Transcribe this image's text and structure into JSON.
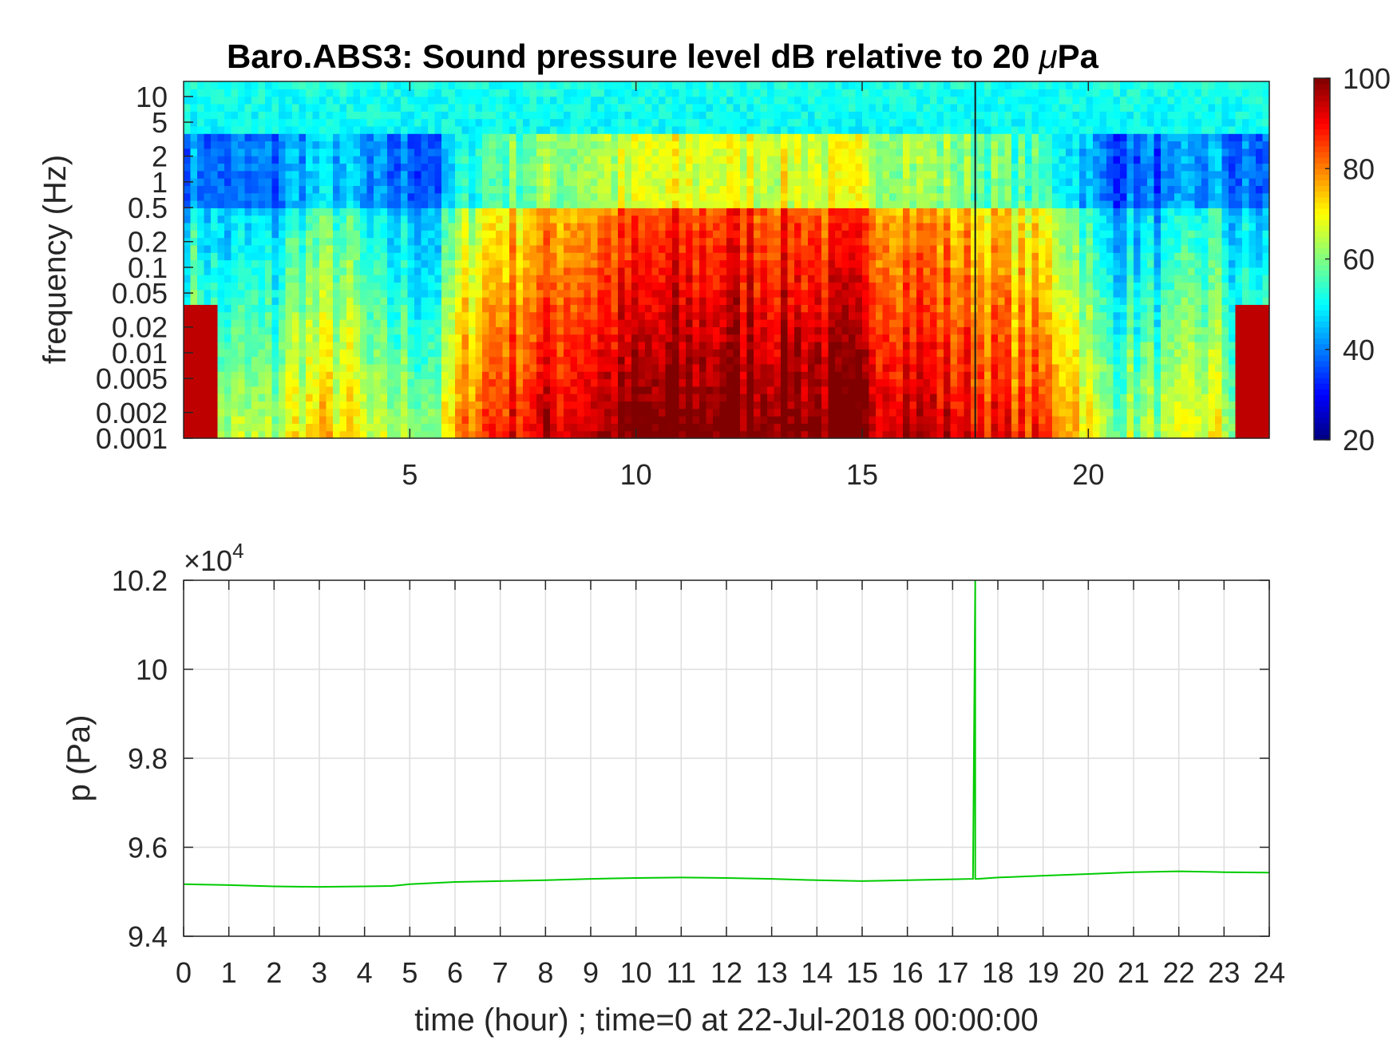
{
  "chart_data": [
    {
      "type": "heatmap",
      "title": "Baro.ABS3: Sound pressure level dB relative to 20 μPa",
      "title_prefix": "Baro.ABS3: Sound pressure level dB relative to 20 ",
      "title_mu": "μ",
      "title_suffix": "Pa",
      "ylabel": "frequency (Hz)",
      "xlabel": "",
      "xlim": [
        0,
        24
      ],
      "ylim": [
        0.001,
        15
      ],
      "yscale": "log",
      "x_ticks": [
        "5",
        "10",
        "15",
        "20"
      ],
      "x_tick_values": [
        5,
        10,
        15,
        20
      ],
      "y_ticks": [
        "0.001",
        "0.002",
        "0.005",
        "0.01",
        "0.02",
        "0.05",
        "0.1",
        "0.2",
        "0.5",
        "1",
        "2",
        "5",
        "10"
      ],
      "y_tick_values": [
        0.001,
        0.002,
        0.005,
        0.01,
        0.02,
        0.05,
        0.1,
        0.2,
        0.5,
        1,
        2,
        5,
        10
      ],
      "colorbar": {
        "colormap": "jet",
        "range": [
          20,
          100
        ],
        "ticks": [
          "20",
          "40",
          "60",
          "80",
          "100"
        ],
        "tick_values": [
          20,
          40,
          60,
          80,
          100
        ]
      },
      "event_time_hour": 17.5,
      "quiet_periods_hour": [
        5.0,
        21.0
      ],
      "grid": false
    },
    {
      "type": "line",
      "xlabel": "time (hour) ; time=0 at 22-Jul-2018 00:00:00",
      "ylabel": "p (Pa)",
      "exponent_label": "×10",
      "exponent_power": "4",
      "xlim": [
        0,
        24
      ],
      "ylim": [
        9.4,
        10.2
      ],
      "x_ticks": [
        "0",
        "1",
        "2",
        "3",
        "4",
        "5",
        "6",
        "7",
        "8",
        "9",
        "10",
        "11",
        "12",
        "13",
        "14",
        "15",
        "16",
        "17",
        "18",
        "19",
        "20",
        "21",
        "22",
        "23",
        "24"
      ],
      "y_ticks": [
        "9.4",
        "9.6",
        "9.8",
        "10",
        "10.2"
      ],
      "y_tick_values": [
        9.4,
        9.6,
        9.8,
        10,
        10.2
      ],
      "grid": true,
      "series": [
        {
          "color": "#00cc00",
          "x": [
            0,
            1,
            2,
            3,
            4,
            4.6,
            5,
            6,
            7,
            8,
            9,
            10,
            11,
            12,
            13,
            14,
            15,
            16,
            17,
            17.45,
            17.5,
            17.5,
            17.55,
            18,
            19,
            20,
            21,
            22,
            23,
            24
          ],
          "y": [
            9.517,
            9.515,
            9.512,
            9.511,
            9.512,
            9.513,
            9.517,
            9.522,
            9.524,
            9.526,
            9.529,
            9.531,
            9.532,
            9.531,
            9.529,
            9.526,
            9.524,
            9.526,
            9.528,
            9.529,
            10.2,
            9.529,
            9.529,
            9.532,
            9.536,
            9.54,
            9.544,
            9.546,
            9.544,
            9.543
          ]
        }
      ]
    }
  ]
}
